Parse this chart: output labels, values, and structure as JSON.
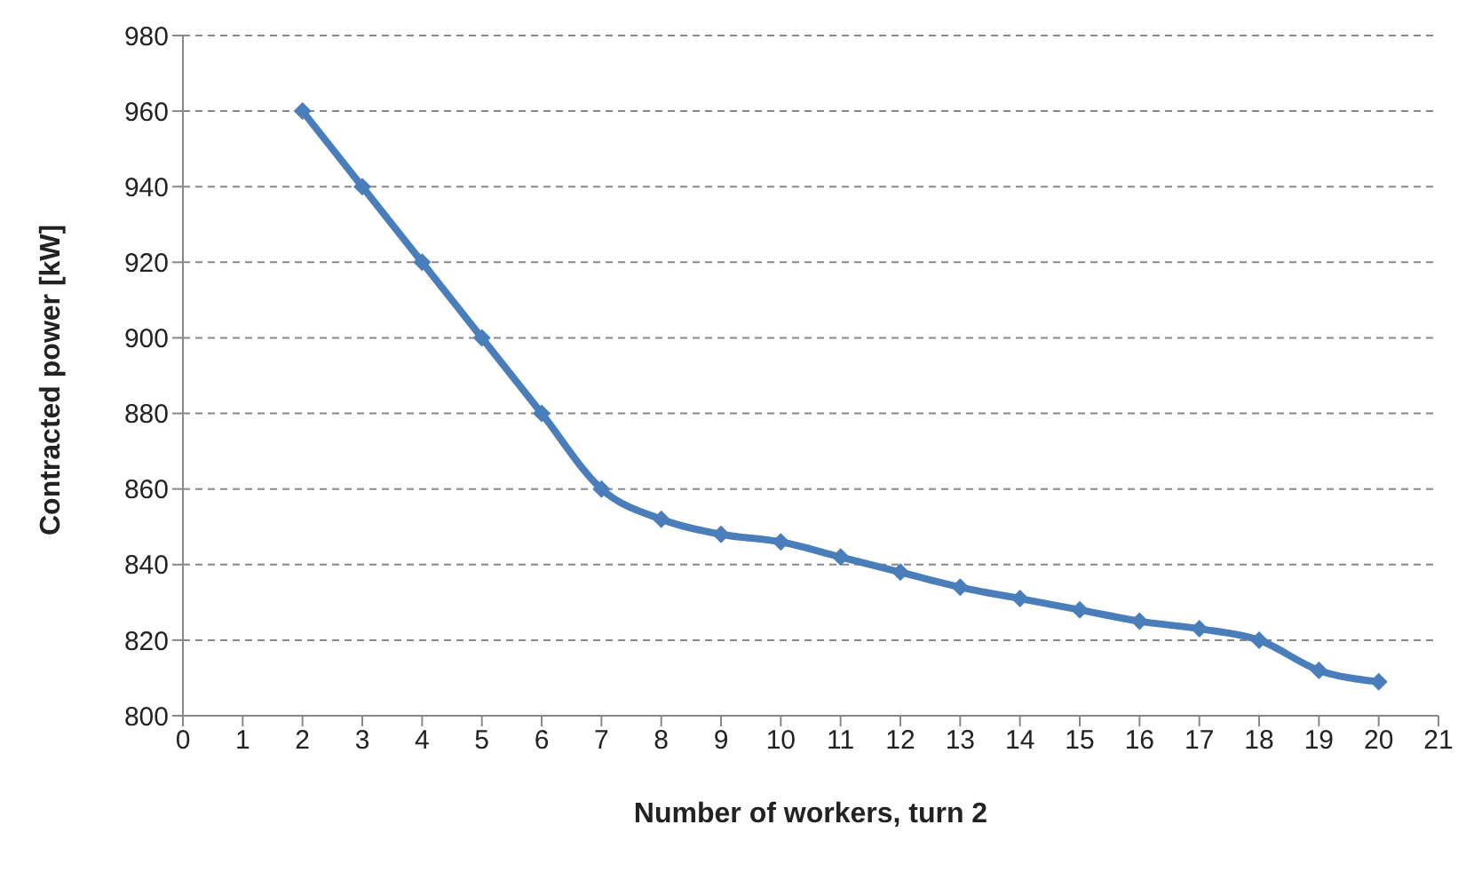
{
  "chart_data": {
    "type": "line",
    "xlabel": "Number of workers, turn 2",
    "ylabel": "Contracted power [kW]",
    "x": [
      2,
      3,
      4,
      5,
      6,
      7,
      8,
      9,
      10,
      11,
      12,
      13,
      14,
      15,
      16,
      17,
      18,
      19,
      20
    ],
    "series": [
      {
        "color": "#4a7ebb",
        "values": [
          960,
          940,
          920,
          900,
          880,
          860,
          852,
          848,
          846,
          842,
          838,
          834,
          831,
          828,
          825,
          823,
          820,
          812,
          809
        ]
      }
    ],
    "xlim": [
      0,
      21
    ],
    "xticks": [
      0,
      1,
      2,
      3,
      4,
      5,
      6,
      7,
      8,
      9,
      10,
      11,
      12,
      13,
      14,
      15,
      16,
      17,
      18,
      19,
      20,
      21
    ],
    "ylim": [
      800,
      980
    ],
    "yticks": [
      800,
      820,
      840,
      860,
      880,
      900,
      920,
      940,
      960,
      980
    ],
    "grid": "y",
    "legend": false,
    "marker": "diamond",
    "line_style": "solid"
  }
}
